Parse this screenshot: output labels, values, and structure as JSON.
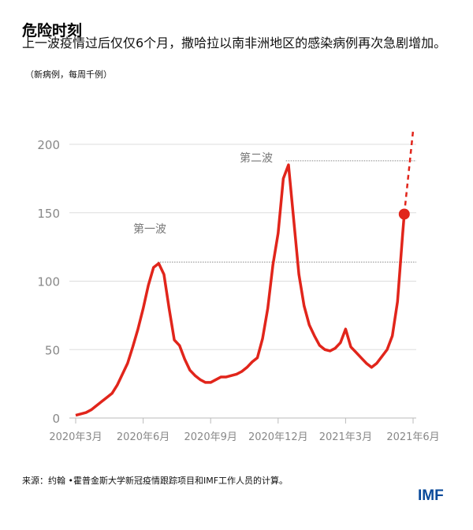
{
  "title": "危险时刻",
  "subtitle": "上一波疫情过后仅仅6个月，撒哈拉以南非洲地区的感染病例再次急剧增加。",
  "unit": "（新病例，每周千例）",
  "source": "来源：约翰 •霍普金斯大学新冠疫情跟踪项目和IMF工作人员的计算。",
  "logo": "IMF",
  "chart_data": {
    "type": "line",
    "title": "危险时刻",
    "ylabel": "新病例，每周千例",
    "ylim": [
      0,
      200
    ],
    "yticks": [
      0,
      50,
      100,
      150,
      200
    ],
    "xlim": [
      0,
      65
    ],
    "xticks": [
      0,
      13,
      26,
      39,
      52,
      65
    ],
    "xtick_labels": [
      "2020年3月",
      "2020年6月",
      "2020年9月",
      "2020年12月",
      "2021年3月",
      "2021年6月"
    ],
    "grid": true,
    "color": "#e1251b",
    "series": [
      {
        "name": "新病例",
        "x": [
          0,
          1,
          2,
          3,
          4,
          5,
          6,
          7,
          8,
          9,
          10,
          11,
          12,
          13,
          14,
          15,
          16,
          17,
          18,
          19,
          20,
          21,
          22,
          23,
          24,
          25,
          26,
          27,
          28,
          29,
          30,
          31,
          32,
          33,
          34,
          35,
          36,
          37,
          38,
          39,
          40,
          41,
          42,
          43,
          44,
          45,
          46,
          47,
          48,
          49,
          50,
          51,
          52,
          53,
          54,
          55,
          56,
          57,
          58,
          59,
          60,
          61,
          62,
          63,
          63.3
        ],
        "values": [
          2,
          3,
          4,
          6,
          9,
          12,
          15,
          18,
          24,
          32,
          40,
          52,
          65,
          80,
          97,
          110,
          113,
          105,
          80,
          57,
          53,
          43,
          35,
          31,
          28,
          26,
          26,
          28,
          30,
          30,
          31,
          32,
          34,
          37,
          41,
          44,
          58,
          80,
          112,
          135,
          175,
          185,
          145,
          105,
          82,
          68,
          60,
          53,
          50,
          49,
          51,
          55,
          65,
          52,
          48,
          44,
          40,
          37,
          40,
          45,
          50,
          60,
          85,
          135,
          149
        ]
      }
    ],
    "projection": {
      "x": [
        63.3,
        65
      ],
      "values": [
        149,
        210
      ]
    },
    "reference_lines": [
      {
        "value": 188,
        "label": "第二波",
        "from_x": 40.5
      },
      {
        "value": 114,
        "label": "第一波",
        "from_x": 15.8
      }
    ]
  }
}
